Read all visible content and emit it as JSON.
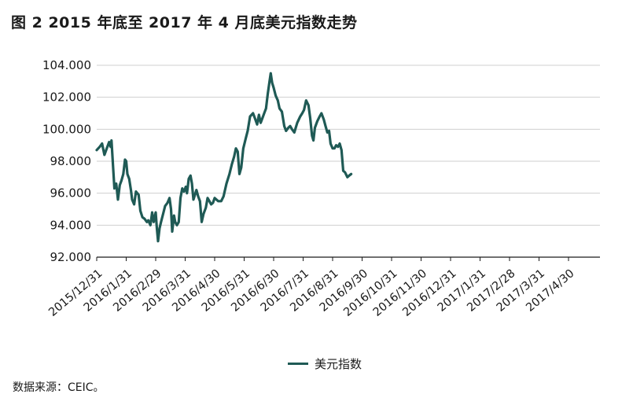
{
  "chart_data": {
    "type": "line",
    "title": "图 2  2015 年底至 2017 年 4 月底美元指数走势",
    "xlabel": "",
    "ylabel": "",
    "ylim": [
      92,
      104
    ],
    "yticks": [
      104,
      102,
      100,
      98,
      96,
      94,
      92
    ],
    "ytick_labels": [
      "104.000",
      "102.000",
      "100.000",
      "98.000",
      "96.000",
      "94.000",
      "92.000"
    ],
    "xtick_labels": [
      "2015/12/31",
      "2016/1/31",
      "2016/2/29",
      "2016/3/31",
      "2016/4/30",
      "2016/5/31",
      "2016/6/30",
      "2016/7/31",
      "2016/8/31",
      "2016/9/30",
      "2016/10/31",
      "2016/11/30",
      "2016/12/31",
      "2017/1/31",
      "2017/2/28",
      "2017/3/31",
      "2017/4/30"
    ],
    "grid": "horizontal",
    "legend_position": "bottom",
    "series": [
      {
        "name": "美元指数",
        "color": "#1f5a55",
        "points": [
          [
            0,
            98.7
          ],
          [
            0.1,
            98.9
          ],
          [
            0.18,
            99.1
          ],
          [
            0.26,
            98.4
          ],
          [
            0.34,
            98.8
          ],
          [
            0.42,
            99.2
          ],
          [
            0.47,
            98.9
          ],
          [
            0.5,
            99.3
          ],
          [
            0.56,
            97.5
          ],
          [
            0.6,
            96.3
          ],
          [
            0.66,
            96.6
          ],
          [
            0.72,
            95.6
          ],
          [
            0.78,
            96.5
          ],
          [
            0.84,
            96.8
          ],
          [
            0.9,
            97.2
          ],
          [
            0.96,
            98.1
          ],
          [
            1.0,
            98.0
          ],
          [
            1.04,
            97.2
          ],
          [
            1.1,
            96.9
          ],
          [
            1.16,
            96.2
          ],
          [
            1.2,
            95.6
          ],
          [
            1.27,
            95.3
          ],
          [
            1.33,
            96.1
          ],
          [
            1.42,
            95.9
          ],
          [
            1.48,
            94.9
          ],
          [
            1.55,
            94.5
          ],
          [
            1.62,
            94.4
          ],
          [
            1.7,
            94.2
          ],
          [
            1.75,
            94.3
          ],
          [
            1.82,
            94.0
          ],
          [
            1.88,
            94.8
          ],
          [
            1.93,
            94.2
          ],
          [
            2.0,
            94.8
          ],
          [
            2.04,
            93.8
          ],
          [
            2.08,
            93.0
          ],
          [
            2.13,
            93.8
          ],
          [
            2.18,
            94.2
          ],
          [
            2.25,
            94.7
          ],
          [
            2.32,
            95.2
          ],
          [
            2.4,
            95.4
          ],
          [
            2.47,
            95.7
          ],
          [
            2.52,
            95.0
          ],
          [
            2.56,
            93.6
          ],
          [
            2.62,
            94.6
          ],
          [
            2.66,
            94.2
          ],
          [
            2.72,
            94.0
          ],
          [
            2.78,
            94.2
          ],
          [
            2.84,
            95.7
          ],
          [
            2.9,
            96.3
          ],
          [
            2.96,
            96.1
          ],
          [
            3.02,
            96.4
          ],
          [
            3.06,
            96.0
          ],
          [
            3.12,
            96.9
          ],
          [
            3.18,
            97.1
          ],
          [
            3.23,
            96.6
          ],
          [
            3.28,
            95.6
          ],
          [
            3.33,
            95.9
          ],
          [
            3.38,
            96.2
          ],
          [
            3.44,
            95.8
          ],
          [
            3.5,
            95.5
          ],
          [
            3.56,
            94.2
          ],
          [
            3.62,
            94.7
          ],
          [
            3.7,
            95.1
          ],
          [
            3.76,
            95.7
          ],
          [
            3.82,
            95.5
          ],
          [
            3.88,
            95.3
          ],
          [
            3.94,
            95.4
          ],
          [
            4.0,
            95.7
          ],
          [
            4.06,
            95.6
          ],
          [
            4.12,
            95.5
          ],
          [
            4.22,
            95.5
          ],
          [
            4.3,
            95.8
          ],
          [
            4.4,
            96.6
          ],
          [
            4.5,
            97.2
          ],
          [
            4.58,
            97.8
          ],
          [
            4.66,
            98.3
          ],
          [
            4.72,
            98.8
          ],
          [
            4.78,
            98.6
          ],
          [
            4.84,
            97.2
          ],
          [
            4.9,
            97.6
          ],
          [
            4.97,
            98.8
          ],
          [
            5.05,
            99.4
          ],
          [
            5.12,
            99.9
          ],
          [
            5.2,
            100.8
          ],
          [
            5.3,
            101.0
          ],
          [
            5.38,
            100.6
          ],
          [
            5.44,
            100.3
          ],
          [
            5.5,
            100.9
          ],
          [
            5.56,
            100.4
          ],
          [
            5.62,
            100.7
          ],
          [
            5.68,
            101.0
          ],
          [
            5.74,
            101.3
          ],
          [
            5.8,
            102.2
          ],
          [
            5.86,
            103.0
          ],
          [
            5.9,
            103.5
          ],
          [
            5.95,
            102.9
          ],
          [
            6.0,
            102.6
          ],
          [
            6.07,
            102.1
          ],
          [
            6.14,
            101.8
          ],
          [
            6.2,
            101.3
          ],
          [
            6.28,
            101.1
          ],
          [
            6.36,
            100.2
          ],
          [
            6.42,
            99.9
          ],
          [
            6.5,
            100.1
          ],
          [
            6.56,
            100.2
          ],
          [
            6.62,
            100.0
          ],
          [
            6.7,
            99.8
          ],
          [
            6.8,
            100.4
          ],
          [
            6.9,
            100.8
          ],
          [
            6.97,
            101.0
          ],
          [
            7.03,
            101.2
          ],
          [
            7.1,
            101.8
          ],
          [
            7.18,
            101.5
          ],
          [
            7.24,
            100.7
          ],
          [
            7.3,
            99.6
          ],
          [
            7.35,
            99.3
          ],
          [
            7.4,
            100.1
          ],
          [
            7.48,
            100.5
          ],
          [
            7.56,
            100.8
          ],
          [
            7.62,
            101.0
          ],
          [
            7.7,
            100.6
          ],
          [
            7.76,
            100.2
          ],
          [
            7.82,
            99.8
          ],
          [
            7.88,
            99.9
          ],
          [
            7.93,
            99.1
          ],
          [
            8.0,
            98.8
          ],
          [
            8.06,
            98.8
          ],
          [
            8.12,
            99.0
          ],
          [
            8.18,
            98.9
          ],
          [
            8.24,
            99.1
          ],
          [
            8.3,
            98.7
          ],
          [
            8.36,
            97.4
          ],
          [
            8.42,
            97.3
          ],
          [
            8.5,
            97.0
          ],
          [
            8.56,
            97.1
          ],
          [
            8.63,
            97.2
          ]
        ]
      }
    ]
  },
  "legend_label": "美元指数",
  "source_note": "数据来源：CEIC。"
}
